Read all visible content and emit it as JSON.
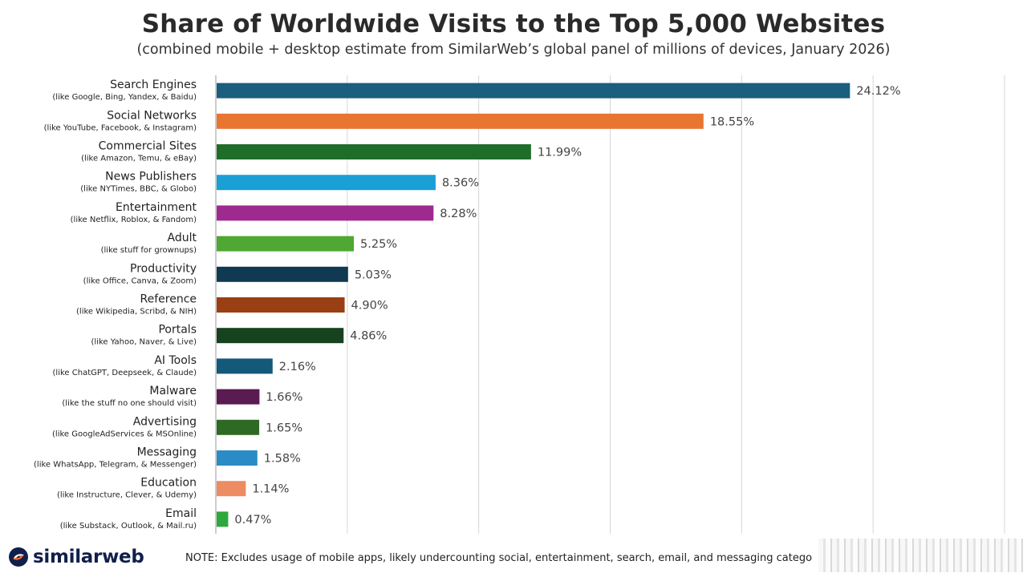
{
  "chart_data": {
    "type": "bar",
    "orientation": "horizontal",
    "title": "Share of Worldwide Visits to the Top 5,000 Websites",
    "subtitle": "(combined mobile + desktop estimate from SimilarWeb’s global panel of millions of devices, January 2026)",
    "xlim": [
      0,
      30
    ],
    "grid": true,
    "categories": [
      {
        "name": "Search Engines",
        "sub": "(like Google, Bing, Yandex, & Baidu)"
      },
      {
        "name": "Social Networks",
        "sub": "(like YouTube, Facebook, & Instagram)"
      },
      {
        "name": "Commercial Sites",
        "sub": "(like Amazon, Temu, & eBay)"
      },
      {
        "name": "News Publishers",
        "sub": "(like NYTimes, BBC, & Globo)"
      },
      {
        "name": "Entertainment",
        "sub": "(like Netflix, Roblox, & Fandom)"
      },
      {
        "name": "Adult",
        "sub": "(like stuff for grownups)"
      },
      {
        "name": "Productivity",
        "sub": "(like Office, Canva, & Zoom)"
      },
      {
        "name": "Reference",
        "sub": "(like Wikipedia, Scribd, & NIH)"
      },
      {
        "name": "Portals",
        "sub": "(like Yahoo, Naver, & Live)"
      },
      {
        "name": "AI Tools",
        "sub": "(like ChatGPT, Deepseek, & Claude)"
      },
      {
        "name": "Malware",
        "sub": "(like the stuff no one should visit)"
      },
      {
        "name": "Advertising",
        "sub": "(like GoogleAdServices & MSOnline)"
      },
      {
        "name": "Messaging",
        "sub": "(like WhatsApp, Telegram, & Messenger)"
      },
      {
        "name": "Education",
        "sub": "(like Instructure, Clever, & Udemy)"
      },
      {
        "name": "Email",
        "sub": "(like Substack, Outlook, & Mail.ru)"
      }
    ],
    "values": [
      24.12,
      18.55,
      11.99,
      8.36,
      8.28,
      5.25,
      5.03,
      4.9,
      4.86,
      2.16,
      1.66,
      1.65,
      1.58,
      1.14,
      0.47
    ],
    "value_labels": [
      "24.12%",
      "18.55%",
      "11.99%",
      "8.36%",
      "8.28%",
      "5.25%",
      "5.03%",
      "4.90%",
      "4.86%",
      "2.16%",
      "1.66%",
      "1.65%",
      "1.58%",
      "1.14%",
      "0.47%"
    ],
    "colors": [
      "#1b5e7e",
      "#e87530",
      "#1e6e2a",
      "#1a9fd6",
      "#9e2a8f",
      "#4ea832",
      "#0f3a52",
      "#9a3f14",
      "#16421f",
      "#14597a",
      "#5a1a52",
      "#2f6a24",
      "#2a8cc4",
      "#ed8b62",
      "#2ea83c"
    ]
  },
  "footer": {
    "brand": "similarweb",
    "note": "NOTE: Excludes usage of mobile apps, likely undercounting social, entertainment, search, email, and messaging catego"
  }
}
